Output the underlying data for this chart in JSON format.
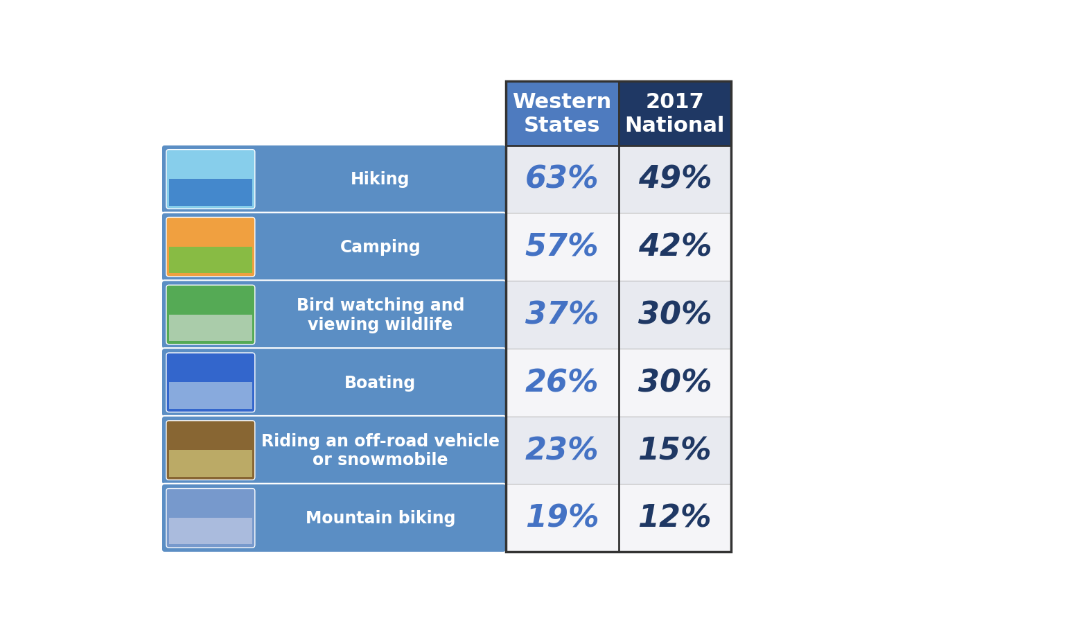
{
  "activities": [
    "Hiking",
    "Camping",
    "Bird watching and\nviewing wildlife",
    "Boating",
    "Riding an off-road vehicle\nor snowmobile",
    "Mountain biking"
  ],
  "western_pct": [
    "63%",
    "57%",
    "37%",
    "26%",
    "23%",
    "19%"
  ],
  "national_pct": [
    "49%",
    "42%",
    "30%",
    "30%",
    "15%",
    "12%"
  ],
  "header_western": "Western\nStates",
  "header_national": "2017\nNational",
  "row_bg_odd": "#e8eaf0",
  "row_bg_even": "#f5f5f8",
  "header_western_bg": "#4e7bbf",
  "header_national_bg": "#1f3864",
  "label_bg": "#5b8ec4",
  "label_text_color": "#ffffff",
  "western_text_color": "#4472c4",
  "national_text_color": "#1f3864",
  "header_text_color": "#ffffff",
  "border_color": "#333333",
  "figure_bg": "#ffffff",
  "img_colors": [
    [
      "#87ceeb",
      "#4488cc"
    ],
    [
      "#f0a040",
      "#88bb44"
    ],
    [
      "#55aa55",
      "#aaccaa"
    ],
    [
      "#3366cc",
      "#88aadd"
    ],
    [
      "#886633",
      "#bbaa66"
    ],
    [
      "#7799cc",
      "#aabbdd"
    ]
  ]
}
